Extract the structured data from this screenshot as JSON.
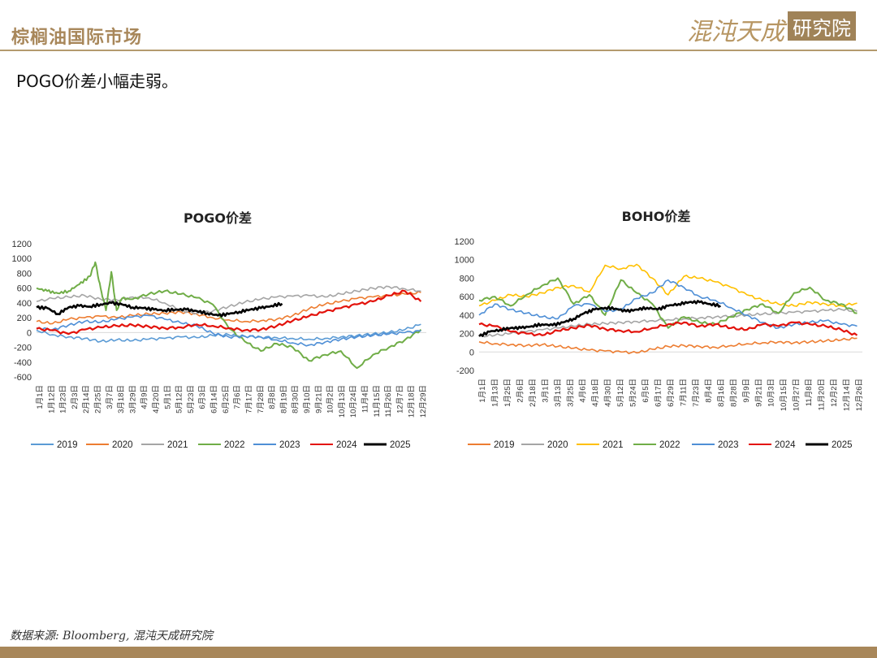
{
  "header": {
    "title": "棕榈油国际市场",
    "logo_text": "混沌天成",
    "logo_box": "研究院"
  },
  "subtitle": "POGO价差小幅走弱。",
  "source": "数据来源: Bloomberg, 混沌天成研究院",
  "colors": {
    "2019": "#5b9bd5",
    "2020": "#ed7d31",
    "2021": "#a5a5a5",
    "2022": "#70ad47",
    "2023": "#4f8fd6",
    "2024": "#e3120b",
    "2025": "#000000"
  },
  "colors_boho": {
    "2019": "#ed7d31",
    "2020": "#a5a5a5",
    "2021": "#ffc000",
    "2022": "#70ad47",
    "2023": "#4f8fd6",
    "2024": "#e3120b",
    "2025": "#000000"
  },
  "chart_data": [
    {
      "type": "line",
      "title": "POGO价差",
      "xlabel": "",
      "ylabel": "",
      "ylim": [
        -600,
        1200
      ],
      "yticks": [
        -600,
        -400,
        -200,
        0,
        200,
        400,
        600,
        800,
        1000,
        1200
      ],
      "x_tick_labels": [
        "1月1日",
        "1月12日",
        "1月23日",
        "2月3日",
        "2月14日",
        "2月25日",
        "3月7日",
        "3月18日",
        "3月29日",
        "4月9日",
        "4月20日",
        "5月1日",
        "5月12日",
        "5月23日",
        "6月3日",
        "6月14日",
        "6月25日",
        "7月6日",
        "7月17日",
        "7月28日",
        "8月8日",
        "8月19日",
        "8月30日",
        "9月10日",
        "9月21日",
        "10月2日",
        "10月13日",
        "10月24日",
        "11月4日",
        "11月15日",
        "11月26日",
        "12月7日",
        "12月18日",
        "12月29日"
      ],
      "legend_position": "bottom",
      "series": [
        {
          "name": "2019",
          "x": [
            0,
            15,
            30,
            45,
            60,
            75,
            90,
            105,
            120,
            135,
            150,
            165,
            180,
            195,
            210,
            225,
            240,
            255,
            270,
            285,
            300,
            315,
            330,
            345,
            360
          ],
          "values": [
            30,
            -30,
            -60,
            -80,
            -120,
            -100,
            -110,
            -90,
            -80,
            -60,
            -70,
            -40,
            -30,
            -50,
            -60,
            -70,
            -80,
            -90,
            -80,
            -60,
            -40,
            -20,
            0,
            40,
            110
          ]
        },
        {
          "name": "2020",
          "x": [
            0,
            15,
            30,
            45,
            60,
            75,
            90,
            105,
            120,
            135,
            150,
            165,
            180,
            195,
            210,
            225,
            240,
            255,
            270,
            285,
            300,
            315,
            330,
            345,
            360
          ],
          "values": [
            150,
            120,
            180,
            200,
            220,
            200,
            230,
            250,
            260,
            280,
            250,
            200,
            170,
            150,
            160,
            180,
            230,
            320,
            380,
            420,
            460,
            480,
            500,
            520,
            540
          ]
        },
        {
          "name": "2021",
          "x": [
            0,
            15,
            30,
            45,
            60,
            75,
            90,
            105,
            120,
            135,
            150,
            165,
            180,
            195,
            210,
            225,
            240,
            255,
            270,
            285,
            300,
            315,
            330,
            345,
            360
          ],
          "values": [
            420,
            460,
            480,
            500,
            450,
            440,
            480,
            470,
            400,
            300,
            260,
            290,
            350,
            410,
            450,
            480,
            490,
            500,
            480,
            520,
            560,
            600,
            620,
            590,
            560
          ]
        },
        {
          "name": "2022",
          "x": [
            0,
            10,
            20,
            30,
            40,
            50,
            55,
            60,
            65,
            70,
            75,
            80,
            90,
            105,
            120,
            135,
            150,
            165,
            180,
            195,
            210,
            225,
            240,
            255,
            270,
            285,
            300,
            315,
            330,
            345,
            360
          ],
          "values": [
            600,
            560,
            530,
            560,
            650,
            760,
            950,
            600,
            300,
            820,
            300,
            460,
            450,
            520,
            560,
            520,
            470,
            380,
            60,
            -120,
            -250,
            -150,
            -200,
            -380,
            -300,
            -250,
            -480,
            -300,
            -200,
            -100,
            40
          ]
        },
        {
          "name": "2023",
          "x": [
            0,
            15,
            30,
            45,
            60,
            75,
            90,
            105,
            120,
            135,
            150,
            165,
            180,
            195,
            210,
            225,
            240,
            255,
            270,
            285,
            300,
            315,
            330,
            345,
            360
          ],
          "values": [
            60,
            40,
            100,
            150,
            140,
            180,
            210,
            230,
            180,
            130,
            90,
            -10,
            -60,
            -50,
            -60,
            -100,
            -140,
            -170,
            -130,
            -90,
            -60,
            -40,
            -20,
            0,
            20
          ]
        },
        {
          "name": "2024",
          "x": [
            0,
            15,
            30,
            45,
            60,
            75,
            90,
            105,
            120,
            135,
            150,
            165,
            180,
            195,
            210,
            225,
            240,
            255,
            270,
            285,
            300,
            315,
            330,
            345,
            360
          ],
          "values": [
            50,
            30,
            -20,
            40,
            70,
            90,
            100,
            80,
            60,
            70,
            110,
            90,
            60,
            30,
            40,
            90,
            160,
            220,
            280,
            330,
            380,
            420,
            500,
            560,
            420
          ]
        },
        {
          "name": "2025",
          "x": [
            0,
            10,
            20,
            30,
            40,
            50,
            60,
            70,
            80,
            90,
            100,
            110,
            120,
            130,
            140,
            150,
            160,
            170,
            180,
            190,
            200,
            210,
            220,
            230
          ],
          "values": [
            340,
            330,
            250,
            340,
            360,
            350,
            380,
            400,
            380,
            340,
            330,
            310,
            300,
            310,
            310,
            290,
            260,
            230,
            250,
            280,
            310,
            330,
            360,
            390
          ]
        }
      ]
    },
    {
      "type": "line",
      "title": "BOHO价差",
      "xlabel": "",
      "ylabel": "",
      "ylim": [
        -200,
        1200
      ],
      "yticks": [
        -200,
        0,
        200,
        400,
        600,
        800,
        1000,
        1200
      ],
      "x_tick_labels": [
        "1月1日",
        "1月13日",
        "1月25日",
        "2月6日",
        "2月18日",
        "3月1日",
        "3月13日",
        "3月25日",
        "4月6日",
        "4月18日",
        "4月30日",
        "5月12日",
        "5月24日",
        "6月5日",
        "6月17日",
        "6月29日",
        "7月11日",
        "7月23日",
        "8月4日",
        "8月16日",
        "8月28日",
        "9月9日",
        "9月21日",
        "10月3日",
        "10月15日",
        "10月27日",
        "11月8日",
        "11月20日",
        "12月2日",
        "12月14日",
        "12月26日"
      ],
      "legend_position": "bottom",
      "series": [
        {
          "name": "2019",
          "x": [
            0,
            15,
            30,
            45,
            60,
            75,
            90,
            105,
            120,
            135,
            150,
            165,
            180,
            195,
            210,
            225,
            240,
            255,
            270,
            285,
            300,
            315,
            330,
            345,
            360
          ],
          "values": [
            110,
            90,
            80,
            70,
            80,
            60,
            40,
            20,
            10,
            0,
            -10,
            30,
            60,
            70,
            60,
            50,
            70,
            90,
            100,
            110,
            100,
            110,
            120,
            130,
            150
          ]
        },
        {
          "name": "2020",
          "x": [
            0,
            15,
            30,
            45,
            60,
            75,
            90,
            105,
            120,
            135,
            150,
            165,
            180,
            195,
            210,
            225,
            240,
            255,
            270,
            285,
            300,
            315,
            330,
            345,
            360
          ],
          "values": [
            170,
            180,
            200,
            220,
            240,
            260,
            280,
            300,
            310,
            320,
            330,
            340,
            350,
            360,
            370,
            380,
            390,
            400,
            410,
            420,
            430,
            440,
            450,
            460,
            440
          ]
        },
        {
          "name": "2021",
          "x": [
            0,
            15,
            30,
            45,
            60,
            75,
            90,
            105,
            120,
            135,
            150,
            165,
            180,
            195,
            210,
            225,
            240,
            255,
            270,
            285,
            300,
            315,
            330,
            345,
            360
          ],
          "values": [
            500,
            560,
            620,
            600,
            640,
            700,
            720,
            650,
            940,
            900,
            950,
            800,
            620,
            820,
            800,
            760,
            700,
            620,
            560,
            520,
            500,
            540,
            520,
            500,
            530
          ]
        },
        {
          "name": "2022",
          "x": [
            0,
            15,
            30,
            45,
            60,
            75,
            90,
            105,
            120,
            135,
            150,
            165,
            180,
            195,
            210,
            225,
            240,
            255,
            270,
            285,
            300,
            315,
            330,
            345,
            360
          ],
          "values": [
            560,
            600,
            500,
            620,
            720,
            800,
            520,
            620,
            400,
            780,
            640,
            520,
            260,
            380,
            320,
            300,
            380,
            460,
            520,
            420,
            640,
            700,
            560,
            520,
            420
          ]
        },
        {
          "name": "2023",
          "x": [
            0,
            15,
            30,
            45,
            60,
            75,
            90,
            105,
            120,
            135,
            150,
            165,
            180,
            195,
            210,
            225,
            240,
            255,
            270,
            285,
            300,
            315,
            330,
            345,
            360
          ],
          "values": [
            400,
            520,
            460,
            420,
            380,
            360,
            500,
            520,
            440,
            460,
            580,
            640,
            780,
            700,
            600,
            560,
            480,
            400,
            320,
            260,
            300,
            320,
            340,
            300,
            280
          ]
        },
        {
          "name": "2024",
          "x": [
            0,
            15,
            30,
            45,
            60,
            75,
            90,
            105,
            120,
            135,
            150,
            165,
            180,
            195,
            210,
            225,
            240,
            255,
            270,
            285,
            300,
            315,
            330,
            345,
            360
          ],
          "values": [
            300,
            280,
            220,
            200,
            180,
            230,
            260,
            290,
            250,
            230,
            220,
            260,
            300,
            320,
            280,
            300,
            260,
            240,
            300,
            280,
            320,
            300,
            280,
            240,
            180
          ]
        },
        {
          "name": "2025",
          "x": [
            0,
            10,
            20,
            30,
            40,
            50,
            60,
            70,
            80,
            90,
            100,
            110,
            120,
            130,
            140,
            150,
            160,
            170,
            180,
            190,
            200,
            210,
            220,
            230
          ],
          "values": [
            170,
            220,
            240,
            260,
            260,
            280,
            300,
            290,
            320,
            360,
            420,
            460,
            480,
            470,
            440,
            460,
            480,
            460,
            500,
            520,
            540,
            540,
            520,
            500
          ]
        }
      ]
    }
  ]
}
